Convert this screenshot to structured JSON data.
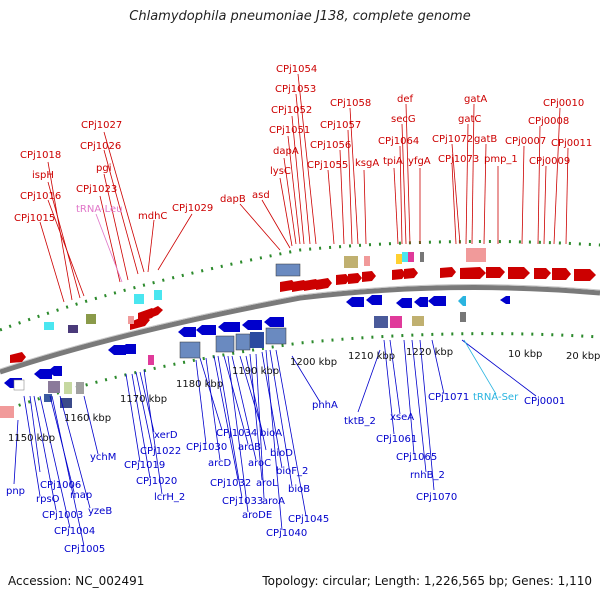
{
  "title": "Chlamydophila pneumoniae J138, complete genome",
  "footer": {
    "accession": "Accession: NC_002491",
    "summary": "Topology: circular; Length: 1,226,565 bp; Genes: 1,110"
  },
  "ticks": [
    "1150 kbp",
    "1160 kbp",
    "1170 kbp",
    "1180 kbp",
    "1190 kbp",
    "1200 kbp",
    "1210 kbp",
    "1220 kbp",
    "10 kbp",
    "20 kbp"
  ],
  "genes_forward": [
    "CPj0010",
    "CPj0011",
    "CPj0008",
    "CPj0009",
    "CPj0007",
    "gatA",
    "gatC",
    "gatB",
    "pmp_1",
    "CPj1072",
    "CPj1073",
    "def",
    "secG",
    "CPj1064",
    "tpiA",
    "yfgA",
    "CPj1058",
    "CPj1057",
    "CPj1056",
    "ksgA",
    "CPj1055",
    "CPj1054",
    "CPj1053",
    "CPj1052",
    "CPj1051",
    "dapA",
    "lysC",
    "asd",
    "dapB",
    "CPj1029",
    "mdhC",
    "CPj1027",
    "CPj1026",
    "pgi",
    "CPj1023",
    "CPj1018",
    "ispH",
    "CPj1016",
    "CPj1015"
  ],
  "trna_forward": [
    "tRNA-Leu"
  ],
  "genes_reverse": [
    "pnp",
    "CPj1006",
    "rpsO",
    "map",
    "CPj1003",
    "yzeB",
    "CPj1004",
    "CPj1005",
    "ychM",
    "xerD",
    "CPj1022",
    "CPj1019",
    "CPj1020",
    "lcrH_2",
    "CPj1034",
    "CPj1030",
    "aroB",
    "arcD",
    "bioA",
    "bioD",
    "aroC",
    "CPj1032",
    "aroL",
    "bioF_2",
    "CPj1033",
    "aroA",
    "bioB",
    "aroDE",
    "CPj1045",
    "CPj1040",
    "phhA",
    "tktB_2",
    "xseA",
    "CPj1061",
    "CPj1065",
    "rnhB_2",
    "CPj1070",
    "CPj1071",
    "CPj0001"
  ],
  "trna_reverse": [
    "tRNA-Ser"
  ]
}
